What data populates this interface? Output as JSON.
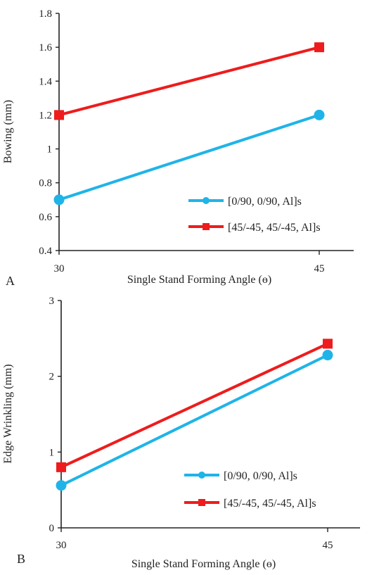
{
  "chart_data": [
    {
      "type": "line",
      "panel_label": "A",
      "xlabel": "Single Stand Forming Angle (ɵ)",
      "ylabel": "Bowing (mm)",
      "x": [
        30,
        45
      ],
      "x_tick_labels": [
        "30",
        "45"
      ],
      "ylim": [
        0.4,
        1.8
      ],
      "y_ticks": [
        0.4,
        0.6,
        0.8,
        1.0,
        1.2,
        1.4,
        1.6,
        1.8
      ],
      "y_tick_labels": [
        "0.4",
        "0.6",
        "0.8",
        "1",
        "1.2",
        "1.4",
        "1.6",
        "1.8"
      ],
      "grid": false,
      "legend_position": "bottom-right",
      "series": [
        {
          "name": "[0/90, 0/90, Al]s",
          "values": [
            0.7,
            1.2
          ],
          "color": "#1fb4e8",
          "marker": "circle"
        },
        {
          "name": "[45/-45, 45/-45, Al]s",
          "values": [
            1.2,
            1.6
          ],
          "color": "#ee1c1c",
          "marker": "square"
        }
      ]
    },
    {
      "type": "line",
      "panel_label": "B",
      "xlabel": "Single Stand Forming Angle (ɵ)",
      "ylabel": "Edge Wrinkling (mm)",
      "x": [
        30,
        45
      ],
      "x_tick_labels": [
        "30",
        "45"
      ],
      "ylim": [
        0,
        3
      ],
      "y_ticks": [
        0,
        1,
        2,
        3
      ],
      "y_tick_labels": [
        "0",
        "1",
        "2",
        "3"
      ],
      "grid": false,
      "legend_position": "bottom-right",
      "series": [
        {
          "name": "[0/90, 0/90, Al]s",
          "values": [
            0.56,
            2.28
          ],
          "color": "#1fb4e8",
          "marker": "circle"
        },
        {
          "name": "[45/-45, 45/-45, Al]s",
          "values": [
            0.8,
            2.43
          ],
          "color": "#ee1c1c",
          "marker": "square"
        }
      ]
    }
  ]
}
